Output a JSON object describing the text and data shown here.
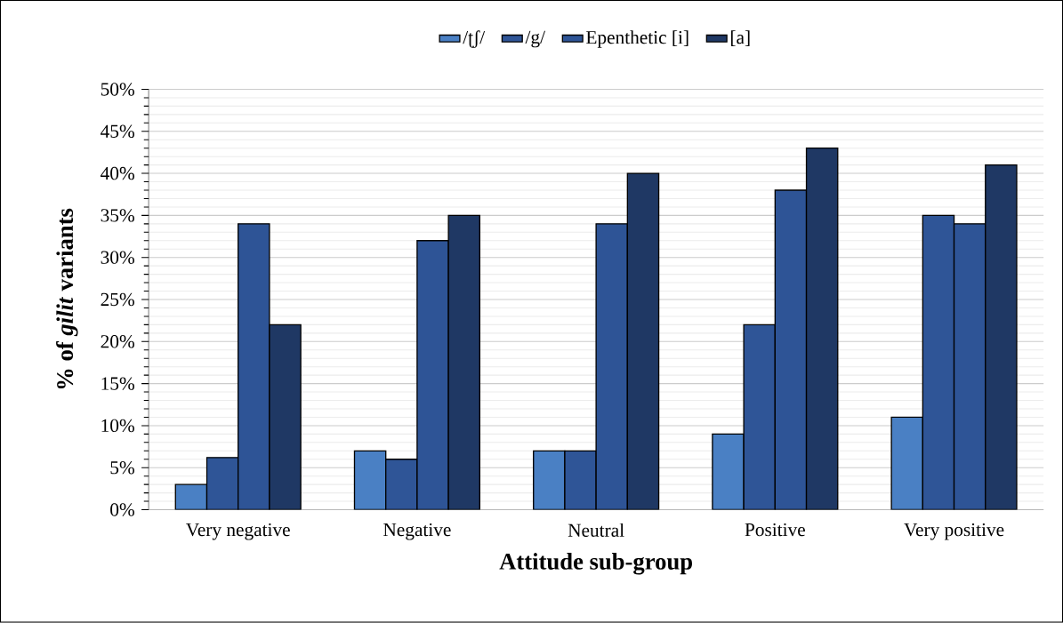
{
  "chart_data": {
    "type": "bar",
    "xlabel": "Attitude sub-group",
    "ylabel": "% of *gilit* variants",
    "categories": [
      "Very negative",
      "Negative",
      "Neutral",
      "Positive",
      "Very positive"
    ],
    "series": [
      {
        "name": "/ʈʃ/",
        "color": "#4a80c4",
        "values": [
          3,
          7,
          7,
          9,
          11
        ]
      },
      {
        "name": "/g/",
        "color": "#2f5597",
        "values": [
          6.2,
          6,
          7,
          22,
          35
        ]
      },
      {
        "name": "Epenthetic [i]",
        "color": "#2e5496",
        "values": [
          34,
          32,
          34,
          38,
          34
        ]
      },
      {
        "name": "[a]",
        "color": "#1f3864",
        "values": [
          22,
          35,
          40,
          43,
          41
        ]
      }
    ],
    "ylim": [
      0,
      50
    ],
    "yticks": [
      {
        "value": 0,
        "label": "0%"
      },
      {
        "value": 5,
        "label": "5%"
      },
      {
        "value": 10,
        "label": "10%"
      },
      {
        "value": 15,
        "label": "15%"
      },
      {
        "value": 20,
        "label": "20%"
      },
      {
        "value": 25,
        "label": "25%"
      },
      {
        "value": 30,
        "label": "30%"
      },
      {
        "value": 35,
        "label": "35%"
      },
      {
        "value": 40,
        "label": "40%"
      },
      {
        "value": 45,
        "label": "45%"
      },
      {
        "value": 50,
        "label": "50%"
      }
    ],
    "grid": "y",
    "legend": "top"
  }
}
